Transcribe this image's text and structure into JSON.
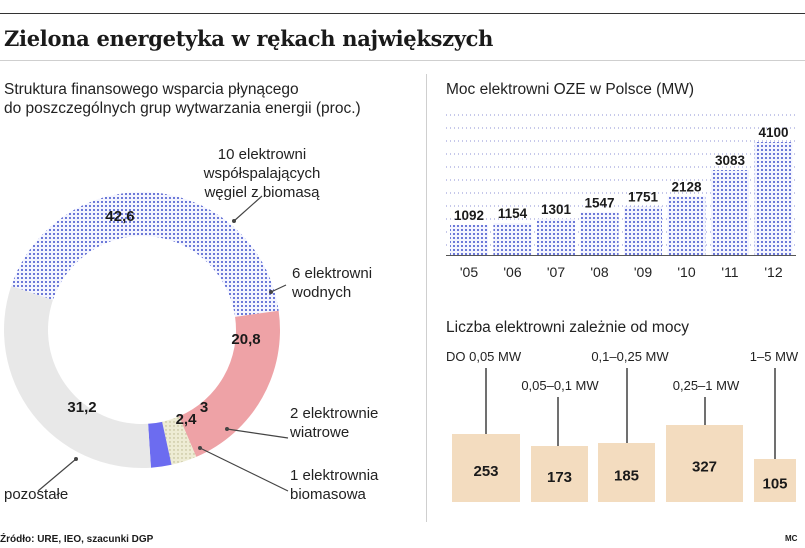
{
  "title": "Zielona energetyka w rękach największych",
  "source": "Źródło: URE, IEO, szacunki DGP",
  "author": "MC",
  "colors": {
    "blue": "#3546c8",
    "pink": "#eea2a6",
    "cream": "#e6e4c4",
    "violet": "#6c6cf0",
    "gray": "#e8e8e8",
    "tan": "#f3dcbf",
    "line": "#444444"
  },
  "chart_data": [
    {
      "type": "pie",
      "title": "Struktura finansowego wsparcia płynącego do poszczególnych grup wytwarzania energii (proc.)",
      "title_lines": [
        "Struktura finansowego wsparcia płynącego",
        "do poszczególnych grup wytwarzania energii (proc.)"
      ],
      "slices": [
        {
          "label_lines": [
            "10 elektrowni",
            "współspalających",
            "węgiel z biomasą"
          ],
          "value": 42.6,
          "value_label": "42,6"
        },
        {
          "label_lines": [
            "6 elektrowni",
            "wodnych"
          ],
          "value": 20.8,
          "value_label": "20,8"
        },
        {
          "label_lines": [
            "2 elektrownie",
            "wiatrowe"
          ],
          "value": 3,
          "value_label": "3"
        },
        {
          "label_lines": [
            "1 elektrownia",
            "biomasowa"
          ],
          "value": 2.4,
          "value_label": "2,4"
        },
        {
          "label_lines": [
            "pozostałe"
          ],
          "value": 31.2,
          "value_label": "31,2"
        }
      ]
    },
    {
      "type": "bar",
      "title": "Moc elektrowni OZE w Polsce (MW)",
      "categories": [
        "'05",
        "'06",
        "'07",
        "'08",
        "'09",
        "'10",
        "'11",
        "'12"
      ],
      "values": [
        1092,
        1154,
        1301,
        1547,
        1751,
        2128,
        3083,
        4100
      ],
      "ylim": [
        0,
        4100
      ],
      "grid": true
    },
    {
      "type": "bar",
      "title": "Liczba elektrowni zależnie od mocy",
      "categories": [
        "DO 0,05 MW",
        "0,05–0,1 MW",
        "0,1–0,25 MW",
        "0,25–1 MW",
        "1–5 MW"
      ],
      "values": [
        253,
        173,
        185,
        327,
        105
      ]
    }
  ]
}
